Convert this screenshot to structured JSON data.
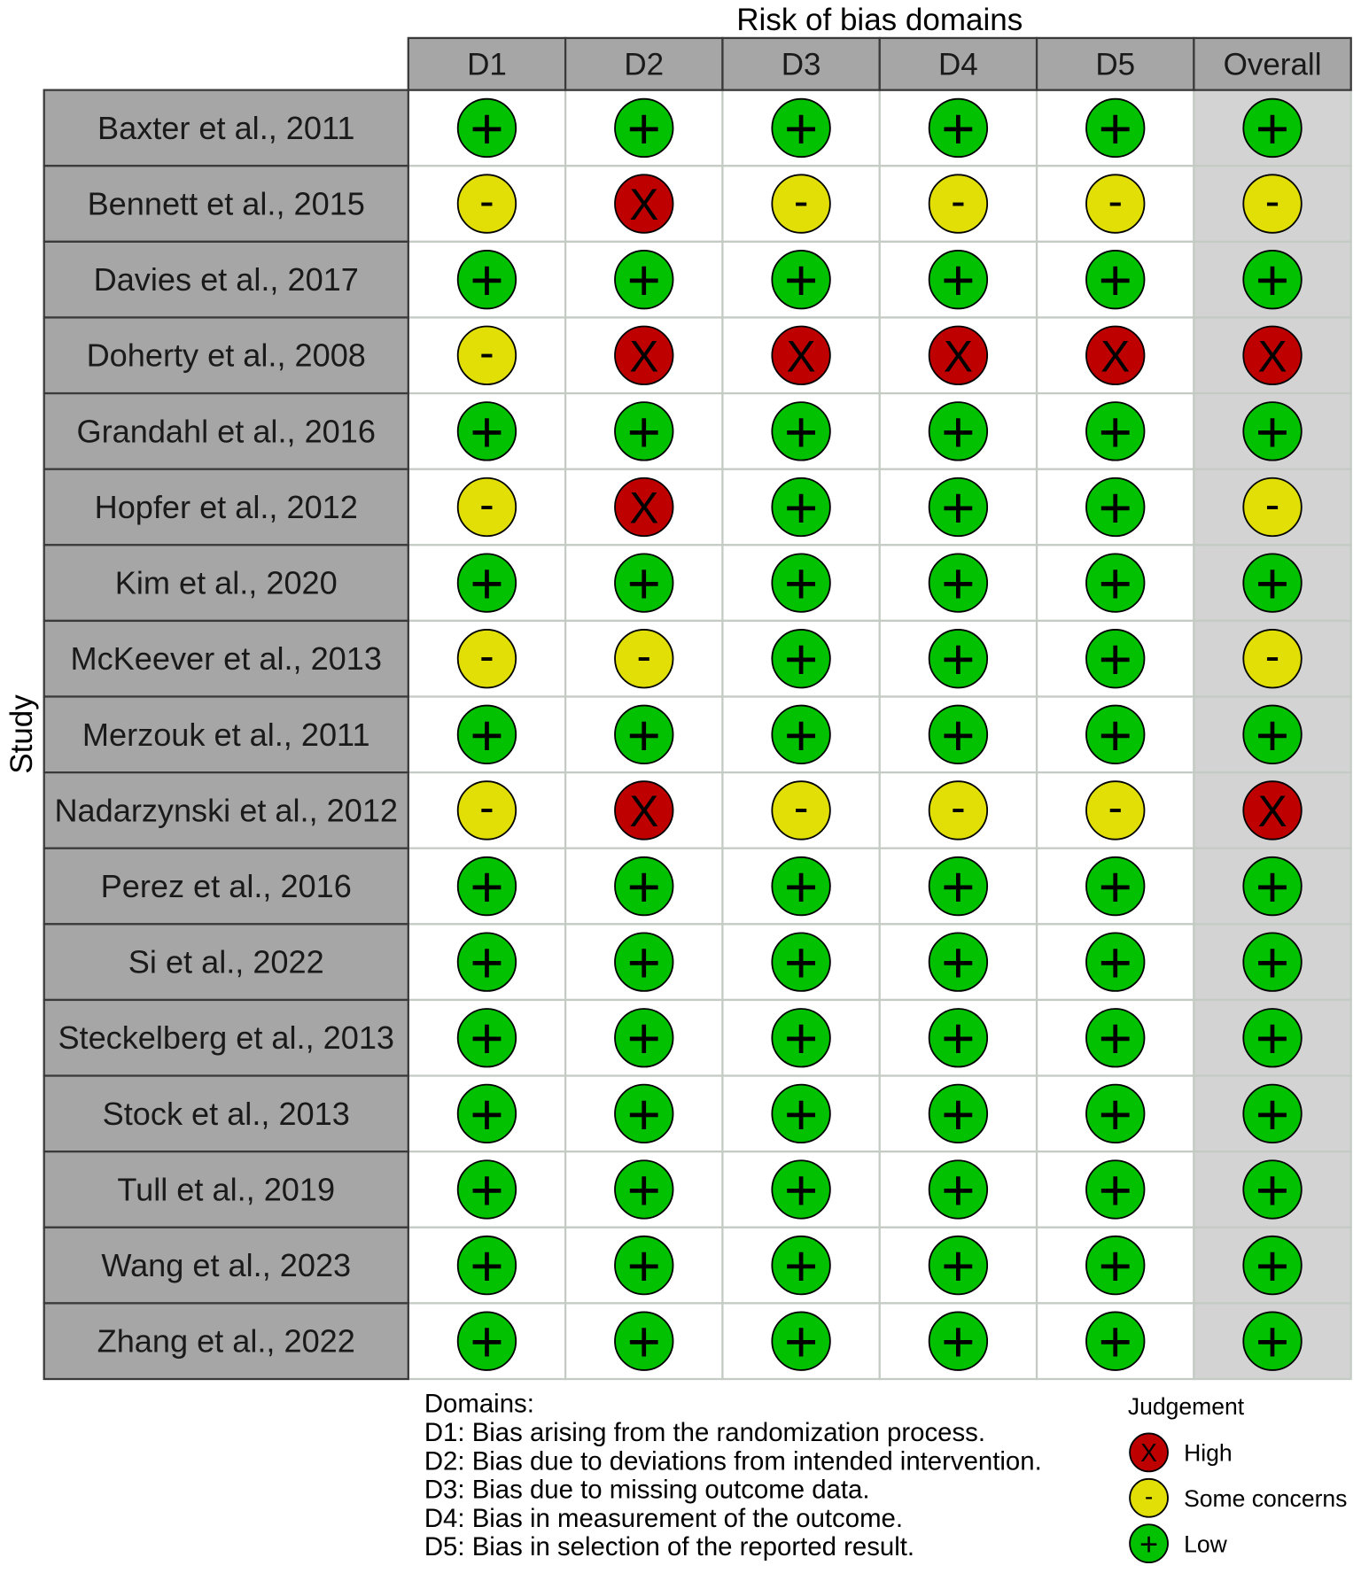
{
  "chart_data": {
    "type": "table",
    "xlabel": "Risk of bias domains",
    "ylabel": "Study",
    "grid": true,
    "columns": [
      "D1",
      "D2",
      "D3",
      "D4",
      "D5",
      "Overall"
    ],
    "rows": [
      {
        "study": "Baxter et al., 2011",
        "judgements": [
          "+",
          "+",
          "+",
          "+",
          "+",
          "+"
        ]
      },
      {
        "study": "Bennett et al., 2015",
        "judgements": [
          "-",
          "X",
          "-",
          "-",
          "-",
          "-"
        ]
      },
      {
        "study": "Davies et al., 2017",
        "judgements": [
          "+",
          "+",
          "+",
          "+",
          "+",
          "+"
        ]
      },
      {
        "study": "Doherty et al., 2008",
        "judgements": [
          "-",
          "X",
          "X",
          "X",
          "X",
          "X"
        ]
      },
      {
        "study": "Grandahl et al., 2016",
        "judgements": [
          "+",
          "+",
          "+",
          "+",
          "+",
          "+"
        ]
      },
      {
        "study": "Hopfer et al., 2012",
        "judgements": [
          "-",
          "X",
          "+",
          "+",
          "+",
          "-"
        ]
      },
      {
        "study": "Kim et al., 2020",
        "judgements": [
          "+",
          "+",
          "+",
          "+",
          "+",
          "+"
        ]
      },
      {
        "study": "McKeever et al., 2013",
        "judgements": [
          "-",
          "-",
          "+",
          "+",
          "+",
          "-"
        ]
      },
      {
        "study": "Merzouk et al., 2011",
        "judgements": [
          "+",
          "+",
          "+",
          "+",
          "+",
          "+"
        ]
      },
      {
        "study": "Nadarzynski et al., 2012",
        "judgements": [
          "-",
          "X",
          "-",
          "-",
          "-",
          "X"
        ]
      },
      {
        "study": "Perez et al., 2016",
        "judgements": [
          "+",
          "+",
          "+",
          "+",
          "+",
          "+"
        ]
      },
      {
        "study": "Si et al., 2022",
        "judgements": [
          "+",
          "+",
          "+",
          "+",
          "+",
          "+"
        ]
      },
      {
        "study": "Steckelberg et al., 2013",
        "judgements": [
          "+",
          "+",
          "+",
          "+",
          "+",
          "+"
        ]
      },
      {
        "study": "Stock et al., 2013",
        "judgements": [
          "+",
          "+",
          "+",
          "+",
          "+",
          "+"
        ]
      },
      {
        "study": "Tull et al., 2019",
        "judgements": [
          "+",
          "+",
          "+",
          "+",
          "+",
          "+"
        ]
      },
      {
        "study": "Wang et al., 2023",
        "judgements": [
          "+",
          "+",
          "+",
          "+",
          "+",
          "+"
        ]
      },
      {
        "study": "Zhang et al., 2022",
        "judgements": [
          "+",
          "+",
          "+",
          "+",
          "+",
          "+"
        ]
      }
    ],
    "legend": {
      "title": "Judgement",
      "position": "bottom-right",
      "items": [
        {
          "label": "High",
          "symbol": "X",
          "color": "#BF0000"
        },
        {
          "label": "Some concerns",
          "symbol": "-",
          "color": "#E2DF07"
        },
        {
          "label": "Low",
          "symbol": "+",
          "color": "#02C100"
        }
      ]
    },
    "domain_key": {
      "heading": "Domains:",
      "items": [
        "D1: Bias arising from the randomization process.",
        "D2: Bias due to deviations from intended intervention.",
        "D3: Bias due to missing outcome data.",
        "D4: Bias in measurement of the outcome.",
        "D5: Bias in selection of the reported result."
      ]
    }
  }
}
